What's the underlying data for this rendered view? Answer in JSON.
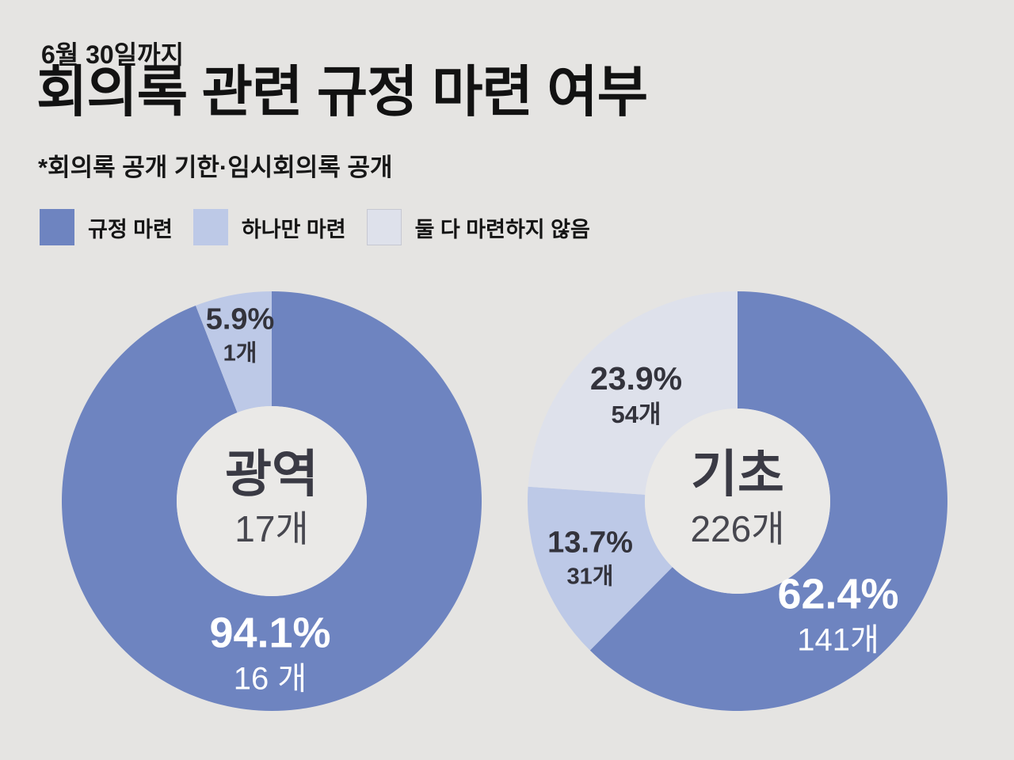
{
  "header": {
    "date_label": "6월 30일까지",
    "title": "회의록 관련 규정 마련 여부",
    "subtitle": "*회의록 공개 기한·임시회의록 공개"
  },
  "legend": {
    "position": "top-left",
    "items": [
      {
        "label": "규정 마련",
        "color": "#6e84c0"
      },
      {
        "label": "하나만 마련",
        "color": "#bdc9e7"
      },
      {
        "label": "둘 다 마련하지 않음",
        "color": "#dee1eb"
      }
    ]
  },
  "colors": {
    "background": "#e5e4e2",
    "donut_hole": "#eae9e7",
    "heading_text": "#171717",
    "dark_label_text": "#33333c",
    "light_label_text": "#ffffff",
    "center_text": "#3a3a44"
  },
  "chart_data": [
    {
      "type": "pie",
      "variant": "donut",
      "title": "광역",
      "center_label": "광역",
      "center_count": "17개",
      "total_count": 17,
      "unit": "개",
      "start_angle_deg": 0,
      "direction": "clockwise",
      "segments": [
        {
          "label": "규정 마련",
          "value_pct": 94.1,
          "count": 16,
          "pct_label": "94.1%",
          "count_label": "16 개",
          "color": "#6e84c0",
          "text_color": "#ffffff"
        },
        {
          "label": "하나만 마련",
          "value_pct": 5.9,
          "count": 1,
          "pct_label": "5.9%",
          "count_label": "1개",
          "color": "#bdc9e7",
          "text_color": "#33333c"
        }
      ]
    },
    {
      "type": "pie",
      "variant": "donut",
      "title": "기초",
      "center_label": "기초",
      "center_count": "226개",
      "total_count": 226,
      "unit": "개",
      "start_angle_deg": 0,
      "direction": "clockwise",
      "segments": [
        {
          "label": "규정 마련",
          "value_pct": 62.4,
          "count": 141,
          "pct_label": "62.4%",
          "count_label": "141개",
          "color": "#6e84c0",
          "text_color": "#ffffff"
        },
        {
          "label": "하나만 마련",
          "value_pct": 13.7,
          "count": 31,
          "pct_label": "13.7%",
          "count_label": "31개",
          "color": "#bdc9e7",
          "text_color": "#33333c"
        },
        {
          "label": "둘 다 마련하지 않음",
          "value_pct": 23.9,
          "count": 54,
          "pct_label": "23.9%",
          "count_label": "54개",
          "color": "#dee1eb",
          "text_color": "#33333c"
        }
      ]
    }
  ]
}
